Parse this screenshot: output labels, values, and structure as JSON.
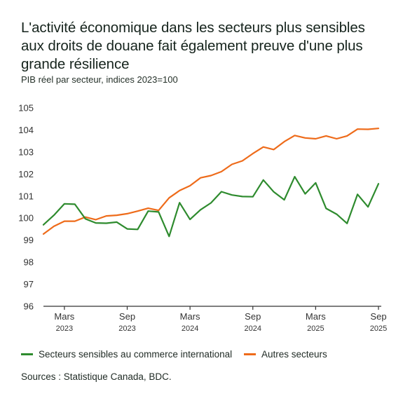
{
  "title": "L'activité économique dans les secteurs plus sensibles aux droits de douane fait également preuve d'une plus grande résilience",
  "subtitle": "PIB réel par secteur, indices 2023=100",
  "source": "Sources : Statistique Canada, BDC.",
  "colors": {
    "green": "#2e8b2e",
    "orange": "#ee6b1a",
    "axis": "#333333",
    "tick_text": "#333333"
  },
  "chart_data": {
    "type": "line",
    "ylim": [
      96,
      105
    ],
    "yticks": [
      96,
      97,
      98,
      99,
      100,
      101,
      102,
      103,
      104,
      105
    ],
    "x_tick_labels": [
      {
        "label": "Mars",
        "year": "2023",
        "index": 2
      },
      {
        "label": "Sep",
        "year": "2023",
        "index": 8
      },
      {
        "label": "Mars",
        "year": "2024",
        "index": 14
      },
      {
        "label": "Sep",
        "year": "2024",
        "index": 20
      },
      {
        "label": "Mars",
        "year": "2025",
        "index": 26
      },
      {
        "label": "Sep",
        "year": "2025",
        "index": 32
      }
    ],
    "x": [
      "2023-01",
      "2023-02",
      "2023-03",
      "2023-04",
      "2023-05",
      "2023-06",
      "2023-07",
      "2023-08",
      "2023-09",
      "2023-10",
      "2023-11",
      "2023-12",
      "2024-01",
      "2024-02",
      "2024-03",
      "2024-04",
      "2024-05",
      "2024-06",
      "2024-07",
      "2024-08",
      "2024-09",
      "2024-10",
      "2024-11",
      "2024-12",
      "2025-01",
      "2025-02",
      "2025-03",
      "2025-04",
      "2025-05",
      "2025-06",
      "2025-07",
      "2025-08",
      "2025-09"
    ],
    "series": [
      {
        "name": "Secteurs sensibles au commerce international",
        "color": "#2e8b2e",
        "values": [
          99.7,
          100.13,
          100.65,
          100.63,
          99.97,
          99.78,
          99.77,
          99.82,
          99.51,
          99.49,
          100.32,
          100.28,
          99.17,
          100.7,
          99.94,
          100.38,
          100.69,
          101.2,
          101.05,
          100.98,
          100.97,
          101.73,
          101.19,
          100.83,
          101.88,
          101.1,
          101.6,
          100.44,
          100.18,
          99.76,
          101.08,
          100.51,
          101.56
        ]
      },
      {
        "name": "Autres secteurs",
        "color": "#ee6b1a",
        "values": [
          99.28,
          99.63,
          99.86,
          99.86,
          100.05,
          99.93,
          100.1,
          100.13,
          100.2,
          100.32,
          100.45,
          100.35,
          100.92,
          101.25,
          101.47,
          101.83,
          101.93,
          102.11,
          102.44,
          102.6,
          102.93,
          103.23,
          103.11,
          103.47,
          103.75,
          103.64,
          103.6,
          103.73,
          103.6,
          103.73,
          104.04,
          104.03,
          104.07
        ]
      }
    ]
  }
}
